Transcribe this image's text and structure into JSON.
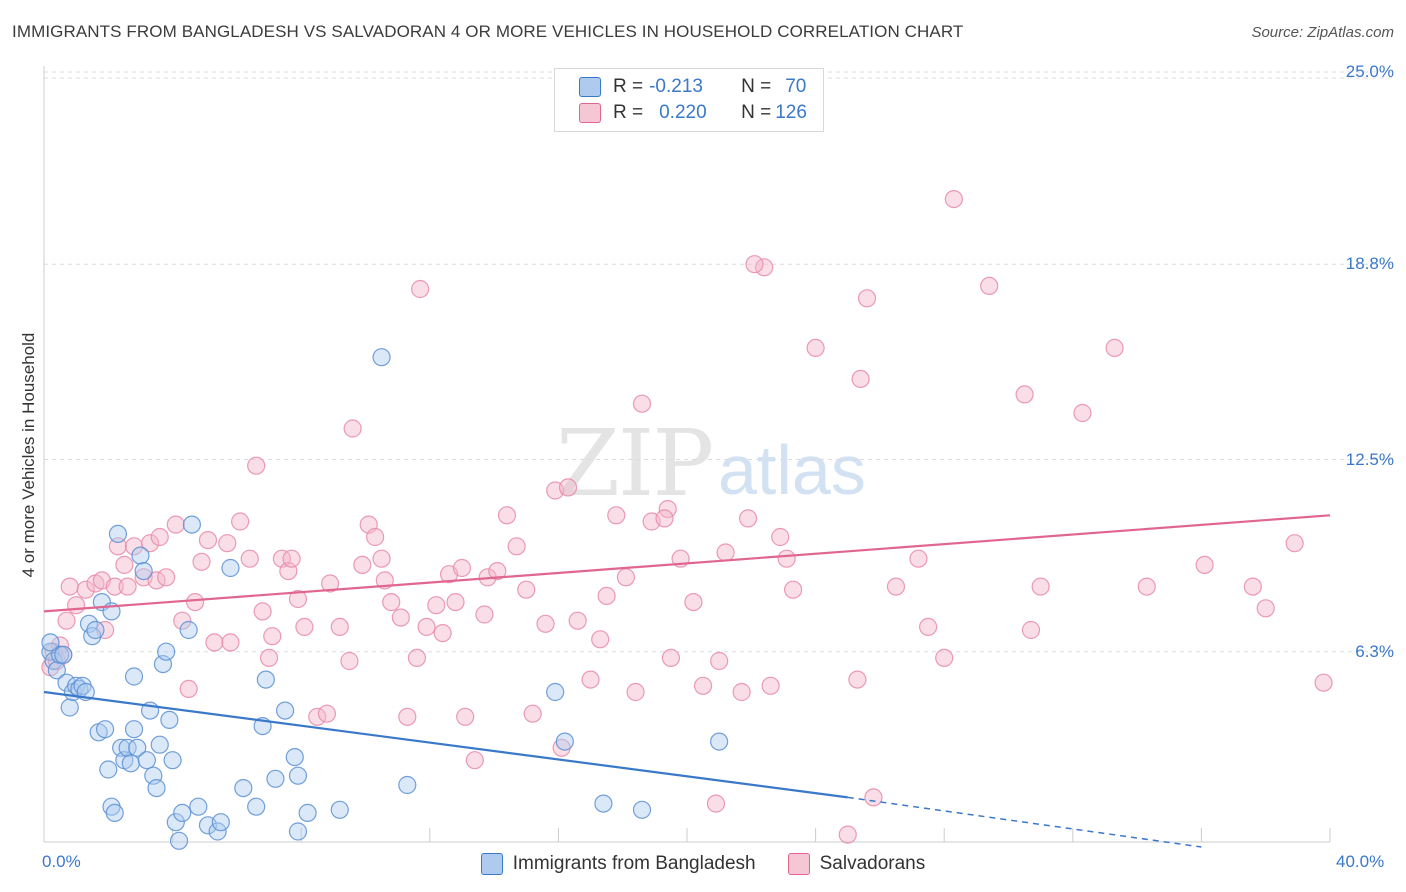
{
  "header": {
    "title": "IMMIGRANTS FROM BANGLADESH VS SALVADORAN 4 OR MORE VEHICLES IN HOUSEHOLD CORRELATION CHART",
    "source": "Source: ZipAtlas.com"
  },
  "watermark": {
    "zip": "ZIP",
    "atlas": "atlas"
  },
  "stats": {
    "row1": {
      "r_label": "R =",
      "r_value": "-0.213",
      "n_label": "N =",
      "n_value": "70"
    },
    "row2": {
      "r_label": "R =",
      "r_value": "0.220",
      "n_label": "N =",
      "n_value": "126"
    }
  },
  "legend": {
    "series1": "Immigrants from Bangladesh",
    "series2": "Salvadorans"
  },
  "colors": {
    "blue": "#3a78c9",
    "blue_fill": "#aecbef",
    "pink": "#e0668e",
    "pink_fill": "#f5b6c9",
    "grid": "#dcdcdc"
  },
  "chart_data": {
    "type": "scatter",
    "title": "IMMIGRANTS FROM BANGLADESH VS SALVADORAN 4 OR MORE VEHICLES IN HOUSEHOLD CORRELATION CHART",
    "xlabel": "",
    "ylabel": "4 or more Vehicles in Household",
    "xlim": [
      0,
      40
    ],
    "ylim": [
      0,
      26.5
    ],
    "x_tick_labels": [
      "0.0%",
      "40.0%"
    ],
    "y_ticks": [
      6.3,
      12.5,
      18.8,
      25.0
    ],
    "y_tick_labels": [
      "6.3%",
      "12.5%",
      "18.8%",
      "25.0%"
    ],
    "grid": true,
    "legend_position": "bottom-center",
    "series": [
      {
        "name": "Immigrants from Bangladesh",
        "color": "#3a78c9",
        "trend": {
          "x": [
            0,
            25
          ],
          "y": [
            5.0,
            1.6
          ],
          "dashed_to": [
            36,
            0.0
          ]
        },
        "points": [
          [
            0.2,
            6.3
          ],
          [
            0.3,
            6.0
          ],
          [
            0.4,
            5.7
          ],
          [
            0.5,
            6.2
          ],
          [
            0.6,
            6.2
          ],
          [
            0.7,
            5.3
          ],
          [
            0.8,
            4.5
          ],
          [
            0.9,
            5.0
          ],
          [
            1.0,
            5.2
          ],
          [
            1.1,
            5.1
          ],
          [
            1.2,
            5.2
          ],
          [
            1.3,
            5.0
          ],
          [
            1.4,
            7.2
          ],
          [
            1.5,
            6.8
          ],
          [
            1.6,
            7.0
          ],
          [
            1.7,
            3.7
          ],
          [
            1.8,
            7.9
          ],
          [
            1.9,
            3.8
          ],
          [
            2.0,
            2.5
          ],
          [
            2.1,
            7.6
          ],
          [
            2.1,
            1.3
          ],
          [
            2.2,
            1.1
          ],
          [
            2.3,
            10.1
          ],
          [
            2.4,
            3.2
          ],
          [
            2.5,
            2.8
          ],
          [
            2.6,
            3.2
          ],
          [
            2.7,
            2.7
          ],
          [
            2.8,
            3.8
          ],
          [
            2.8,
            5.5
          ],
          [
            2.9,
            3.2
          ],
          [
            3.0,
            9.4
          ],
          [
            3.1,
            8.9
          ],
          [
            3.2,
            2.8
          ],
          [
            3.3,
            4.4
          ],
          [
            3.4,
            2.3
          ],
          [
            3.5,
            1.9
          ],
          [
            3.6,
            3.3
          ],
          [
            3.7,
            5.9
          ],
          [
            3.8,
            6.3
          ],
          [
            3.9,
            4.1
          ],
          [
            4.0,
            2.8
          ],
          [
            4.1,
            0.8
          ],
          [
            4.2,
            0.2
          ],
          [
            4.3,
            1.1
          ],
          [
            4.5,
            7.0
          ],
          [
            4.6,
            10.4
          ],
          [
            4.8,
            1.3
          ],
          [
            5.1,
            0.7
          ],
          [
            5.4,
            0.5
          ],
          [
            5.5,
            0.8
          ],
          [
            5.8,
            9.0
          ],
          [
            6.2,
            1.9
          ],
          [
            6.6,
            1.3
          ],
          [
            6.8,
            3.9
          ],
          [
            6.9,
            5.4
          ],
          [
            7.2,
            2.2
          ],
          [
            7.5,
            4.4
          ],
          [
            7.8,
            2.9
          ],
          [
            7.9,
            2.3
          ],
          [
            7.9,
            0.5
          ],
          [
            8.2,
            1.1
          ],
          [
            9.2,
            1.2
          ],
          [
            10.5,
            15.8
          ],
          [
            11.3,
            2.0
          ],
          [
            15.9,
            5.0
          ],
          [
            16.2,
            3.4
          ],
          [
            17.4,
            1.4
          ],
          [
            18.6,
            1.2
          ],
          [
            21.0,
            3.4
          ],
          [
            0.2,
            6.6
          ]
        ]
      },
      {
        "name": "Salvadorans",
        "color": "#e0668e",
        "trend": {
          "x": [
            0,
            40
          ],
          "y": [
            7.6,
            10.7
          ]
        },
        "points": [
          [
            0.2,
            5.8
          ],
          [
            0.3,
            6.3
          ],
          [
            0.4,
            6.0
          ],
          [
            0.5,
            6.5
          ],
          [
            0.6,
            6.2
          ],
          [
            0.7,
            7.3
          ],
          [
            0.8,
            8.4
          ],
          [
            1.0,
            7.8
          ],
          [
            1.3,
            8.3
          ],
          [
            1.6,
            8.5
          ],
          [
            1.8,
            8.6
          ],
          [
            1.9,
            7.0
          ],
          [
            2.2,
            8.4
          ],
          [
            2.3,
            9.7
          ],
          [
            2.5,
            9.1
          ],
          [
            2.6,
            8.4
          ],
          [
            2.8,
            9.7
          ],
          [
            3.1,
            8.7
          ],
          [
            3.3,
            9.8
          ],
          [
            3.5,
            8.6
          ],
          [
            3.6,
            10.0
          ],
          [
            3.8,
            8.7
          ],
          [
            4.1,
            10.4
          ],
          [
            4.3,
            7.3
          ],
          [
            4.5,
            5.1
          ],
          [
            4.7,
            7.9
          ],
          [
            4.9,
            9.2
          ],
          [
            5.1,
            9.9
          ],
          [
            5.3,
            6.6
          ],
          [
            5.7,
            9.8
          ],
          [
            5.8,
            6.6
          ],
          [
            6.1,
            10.5
          ],
          [
            6.4,
            9.3
          ],
          [
            6.6,
            12.3
          ],
          [
            6.8,
            7.6
          ],
          [
            7.0,
            6.1
          ],
          [
            7.1,
            6.8
          ],
          [
            7.4,
            9.3
          ],
          [
            7.6,
            8.9
          ],
          [
            7.7,
            9.3
          ],
          [
            7.9,
            8.0
          ],
          [
            8.1,
            7.1
          ],
          [
            8.5,
            4.2
          ],
          [
            8.8,
            4.3
          ],
          [
            8.9,
            8.5
          ],
          [
            9.2,
            7.1
          ],
          [
            9.5,
            6.0
          ],
          [
            9.6,
            13.5
          ],
          [
            9.9,
            9.1
          ],
          [
            10.1,
            10.4
          ],
          [
            10.3,
            10.0
          ],
          [
            10.5,
            9.3
          ],
          [
            10.6,
            8.6
          ],
          [
            10.8,
            7.9
          ],
          [
            11.1,
            7.4
          ],
          [
            11.3,
            4.2
          ],
          [
            11.6,
            6.1
          ],
          [
            11.7,
            18.0
          ],
          [
            11.9,
            7.1
          ],
          [
            12.2,
            7.8
          ],
          [
            12.4,
            6.9
          ],
          [
            12.6,
            8.8
          ],
          [
            12.8,
            7.9
          ],
          [
            13.0,
            9.0
          ],
          [
            13.1,
            4.2
          ],
          [
            13.4,
            2.8
          ],
          [
            13.7,
            7.5
          ],
          [
            13.8,
            8.7
          ],
          [
            14.1,
            8.9
          ],
          [
            14.4,
            10.7
          ],
          [
            14.7,
            9.7
          ],
          [
            15.0,
            8.3
          ],
          [
            15.2,
            4.3
          ],
          [
            15.6,
            7.2
          ],
          [
            15.9,
            11.5
          ],
          [
            16.1,
            3.2
          ],
          [
            16.3,
            11.6
          ],
          [
            16.6,
            7.3
          ],
          [
            17.0,
            5.4
          ],
          [
            17.3,
            6.7
          ],
          [
            17.5,
            8.1
          ],
          [
            17.8,
            10.7
          ],
          [
            18.1,
            8.7
          ],
          [
            18.4,
            5.0
          ],
          [
            18.6,
            14.3
          ],
          [
            18.9,
            10.5
          ],
          [
            19.4,
            10.9
          ],
          [
            19.3,
            10.6
          ],
          [
            19.5,
            6.1
          ],
          [
            19.8,
            9.3
          ],
          [
            20.2,
            7.9
          ],
          [
            20.5,
            5.2
          ],
          [
            20.9,
            1.4
          ],
          [
            21.0,
            6.0
          ],
          [
            21.2,
            9.5
          ],
          [
            21.7,
            5.0
          ],
          [
            21.9,
            10.6
          ],
          [
            22.4,
            18.7
          ],
          [
            22.6,
            5.2
          ],
          [
            22.9,
            10.0
          ],
          [
            23.1,
            9.3
          ],
          [
            23.3,
            8.3
          ],
          [
            24.0,
            16.1
          ],
          [
            25.3,
            5.4
          ],
          [
            25.4,
            15.1
          ],
          [
            25.6,
            17.7
          ],
          [
            25.8,
            1.6
          ],
          [
            26.5,
            8.4
          ],
          [
            27.2,
            9.3
          ],
          [
            27.5,
            7.1
          ],
          [
            28.0,
            6.1
          ],
          [
            28.3,
            20.9
          ],
          [
            29.4,
            18.1
          ],
          [
            30.5,
            14.6
          ],
          [
            30.7,
            7.0
          ],
          [
            31.0,
            8.4
          ],
          [
            32.3,
            14.0
          ],
          [
            33.3,
            16.1
          ],
          [
            34.3,
            8.4
          ],
          [
            36.1,
            9.1
          ],
          [
            37.6,
            8.4
          ],
          [
            38.0,
            7.7
          ],
          [
            38.9,
            9.8
          ],
          [
            39.8,
            5.3
          ],
          [
            22.1,
            18.8
          ],
          [
            25.0,
            0.4
          ]
        ]
      }
    ]
  }
}
